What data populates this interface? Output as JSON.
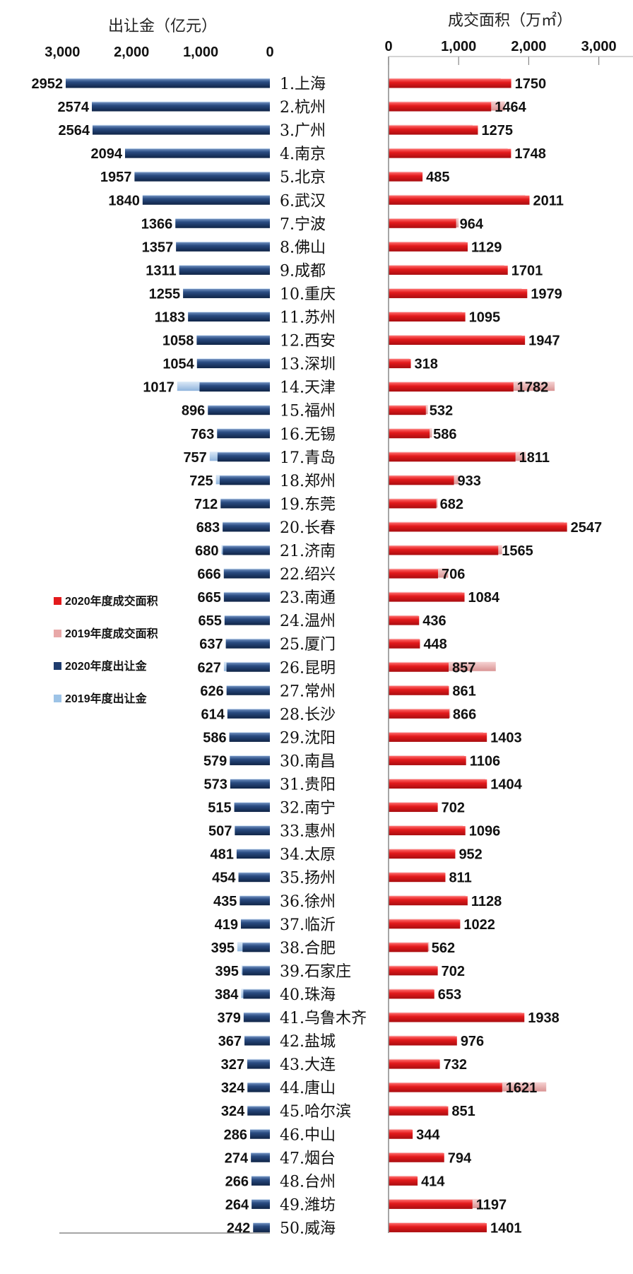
{
  "chart_data": [
    {
      "type": "bar",
      "orientation": "horizontal",
      "reversed_axis": true,
      "xlabel": "出让金（亿元）",
      "xlim": [
        0,
        3000
      ],
      "ticks": [
        "3,000",
        "2,000",
        "1,000",
        "0"
      ],
      "series": [
        {
          "name": "2020年度出让金",
          "color": "#1f3c6e",
          "values": [
            2952,
            2574,
            2564,
            2094,
            1957,
            1840,
            1366,
            1357,
            1311,
            1255,
            1183,
            1058,
            1054,
            1017,
            896,
            763,
            757,
            725,
            712,
            683,
            680,
            666,
            665,
            655,
            637,
            627,
            626,
            614,
            586,
            579,
            573,
            515,
            507,
            481,
            454,
            435,
            419,
            395,
            395,
            384,
            379,
            367,
            327,
            324,
            324,
            286,
            274,
            266,
            264,
            242
          ]
        },
        {
          "name": "2019年度出让金",
          "color": "#9dc3e6",
          "values": [
            2952,
            2574,
            2564,
            2094,
            1957,
            1840,
            1366,
            1357,
            1311,
            1255,
            1183,
            1058,
            1054,
            1340,
            896,
            763,
            870,
            780,
            712,
            683,
            700,
            666,
            665,
            655,
            637,
            665,
            626,
            614,
            586,
            579,
            573,
            515,
            507,
            470,
            454,
            435,
            419,
            470,
            410,
            415,
            379,
            367,
            327,
            324,
            324,
            286,
            274,
            266,
            264,
            242
          ]
        }
      ]
    },
    {
      "type": "bar",
      "orientation": "horizontal",
      "xlabel": "成交面积（万㎡）",
      "xlim": [
        0,
        3000
      ],
      "ticks": [
        "0",
        "1,000",
        "2,000",
        "3,000"
      ],
      "series": [
        {
          "name": "2020年度成交面积",
          "color": "#e31a1c",
          "values": [
            1750,
            1464,
            1275,
            1748,
            485,
            2011,
            964,
            1129,
            1701,
            1979,
            1095,
            1947,
            318,
            1782,
            532,
            586,
            1811,
            933,
            682,
            2547,
            1565,
            706,
            1084,
            436,
            448,
            857,
            861,
            866,
            1403,
            1106,
            1404,
            702,
            1096,
            952,
            811,
            1128,
            1022,
            562,
            702,
            653,
            1938,
            976,
            732,
            1621,
            851,
            344,
            794,
            414,
            1197,
            1401
          ]
        },
        {
          "name": "2019年度成交面积",
          "color": "#e8a8a8",
          "values": [
            1600,
            1660,
            1200,
            1700,
            460,
            1950,
            1000,
            1100,
            1650,
            1900,
            1050,
            1900,
            300,
            2370,
            560,
            620,
            1960,
            1000,
            700,
            2500,
            1620,
            850,
            1050,
            420,
            440,
            1530,
            850,
            880,
            1350,
            1080,
            1380,
            690,
            1060,
            930,
            800,
            1100,
            1000,
            580,
            680,
            640,
            1900,
            950,
            720,
            2250,
            830,
            330,
            780,
            400,
            1300,
            1380
          ]
        }
      ]
    }
  ],
  "cities": [
    "1.上海",
    "2.杭州",
    "3.广州",
    "4.南京",
    "5.北京",
    "6.武汉",
    "7.宁波",
    "8.佛山",
    "9.成都",
    "10.重庆",
    "11.苏州",
    "12.西安",
    "13.深圳",
    "14.天津",
    "15.福州",
    "16.无锡",
    "17.青岛",
    "18.郑州",
    "19.东莞",
    "20.长春",
    "21.济南",
    "22.绍兴",
    "23.南通",
    "24.温州",
    "25.厦门",
    "26.昆明",
    "27.常州",
    "28.长沙",
    "29.沈阳",
    "30.南昌",
    "31.贵阳",
    "32.南宁",
    "33.惠州",
    "34.太原",
    "35.扬州",
    "36.徐州",
    "37.临沂",
    "38.合肥",
    "39.石家庄",
    "40.珠海",
    "41.乌鲁木齐",
    "42.盐城",
    "43.大连",
    "44.唐山",
    "45.哈尔滨",
    "46.中山",
    "47.烟台",
    "48.台州",
    "49.潍坊",
    "50.威海"
  ],
  "legend": {
    "placement": "left-middle",
    "items": [
      {
        "label": "2020年度成交面积",
        "color": "#e31a1c"
      },
      {
        "label": "2019年度成交面积",
        "color": "#e8a8a8"
      },
      {
        "label": "2020年度出让金",
        "color": "#1f3c6e"
      },
      {
        "label": "2019年度出让金",
        "color": "#9dc3e6"
      }
    ]
  }
}
